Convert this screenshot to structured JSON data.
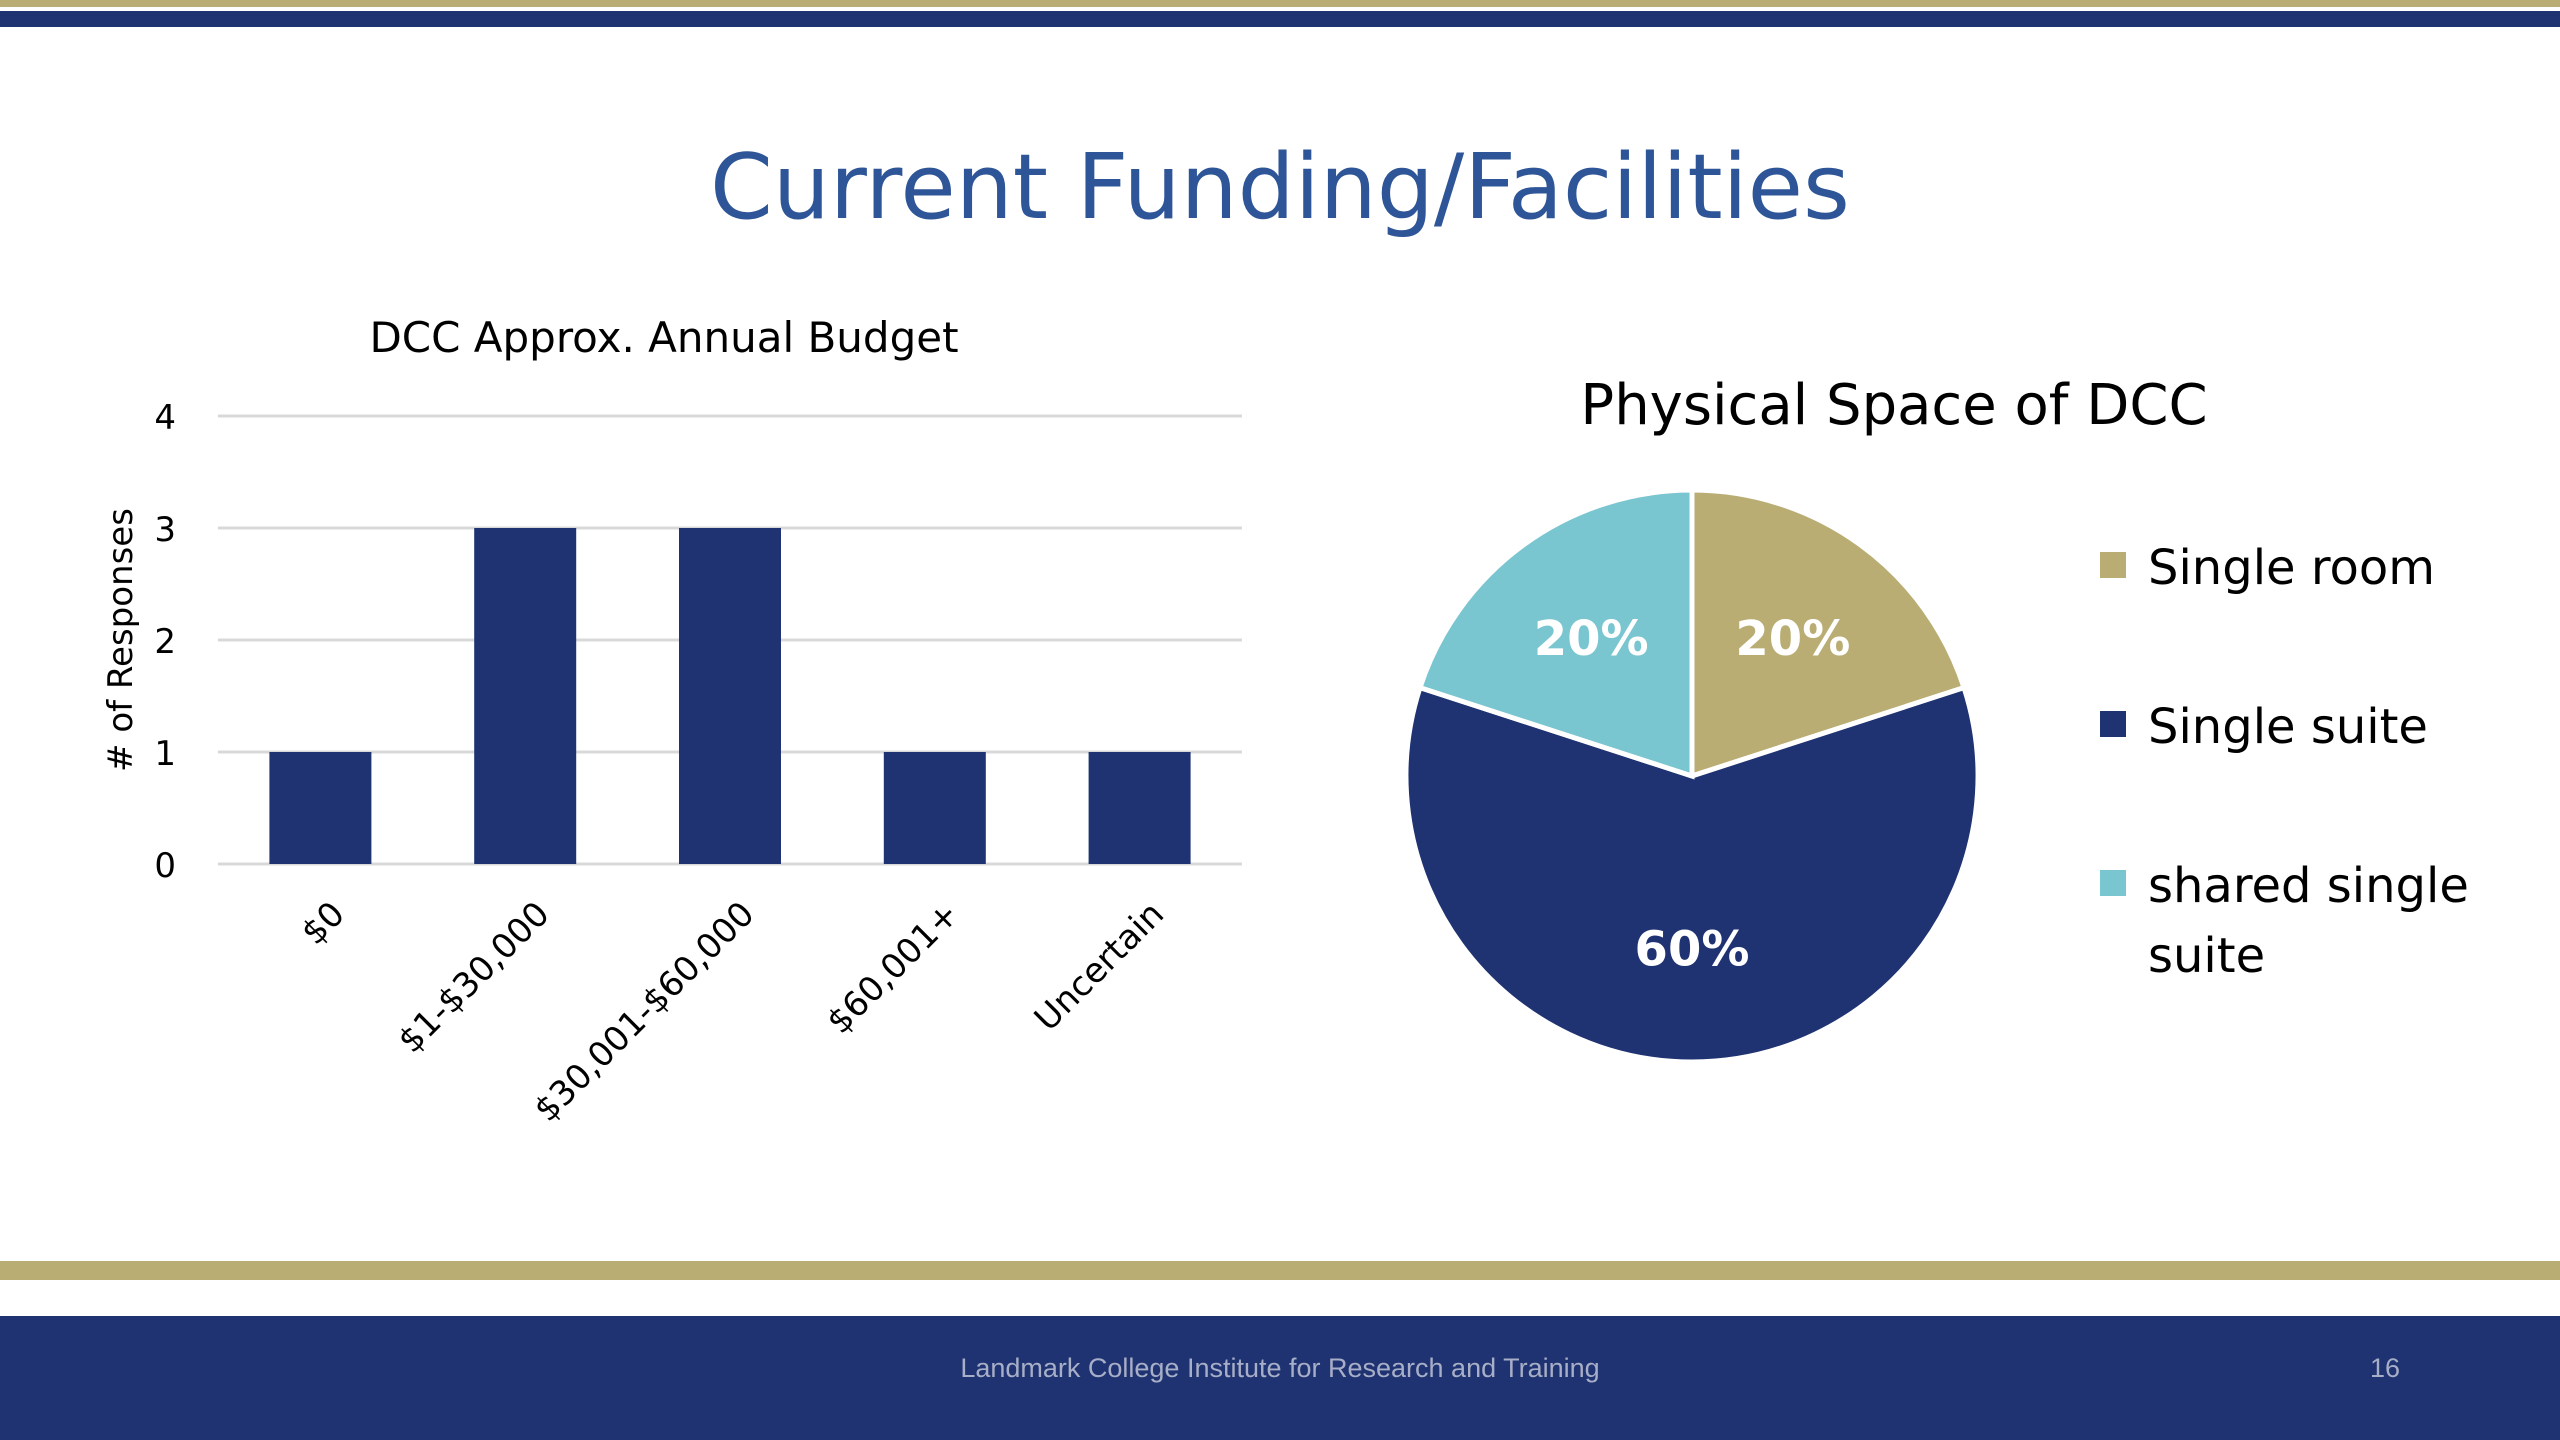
{
  "slide": {
    "title": "Current Funding/Facilities",
    "footer_text": "Landmark College Institute for Research and Training",
    "page_number": "16"
  },
  "colors": {
    "navy": "#1f3271",
    "gold": "#b9ad73",
    "teal": "#79c5d0",
    "title_blue": "#2e5597",
    "gridline": "#d9d9d9",
    "footer_text": "#a7aec7"
  },
  "chart_data": [
    {
      "type": "bar",
      "title": "DCC Approx. Annual Budget",
      "xlabel": "",
      "ylabel": "# of Responses",
      "categories": [
        "$0",
        "$1-$30,000",
        "$30,001-$60,000",
        "$60,001+",
        "Uncertain"
      ],
      "values": [
        1,
        3,
        3,
        1,
        1
      ],
      "ylim": [
        0,
        4
      ],
      "yticks": [
        "0",
        "1",
        "2",
        "3",
        "4"
      ],
      "grid": true,
      "legend": "none"
    },
    {
      "type": "pie",
      "title": "Physical Space of DCC",
      "labels": [
        "Single room",
        "Single suite",
        "shared single suite"
      ],
      "values": [
        20,
        60,
        20
      ],
      "data_labels": [
        "20%",
        "60%",
        "20%"
      ],
      "colors": [
        "#b9ad73",
        "#1f3271",
        "#79c5d0"
      ],
      "legend": "right"
    }
  ]
}
